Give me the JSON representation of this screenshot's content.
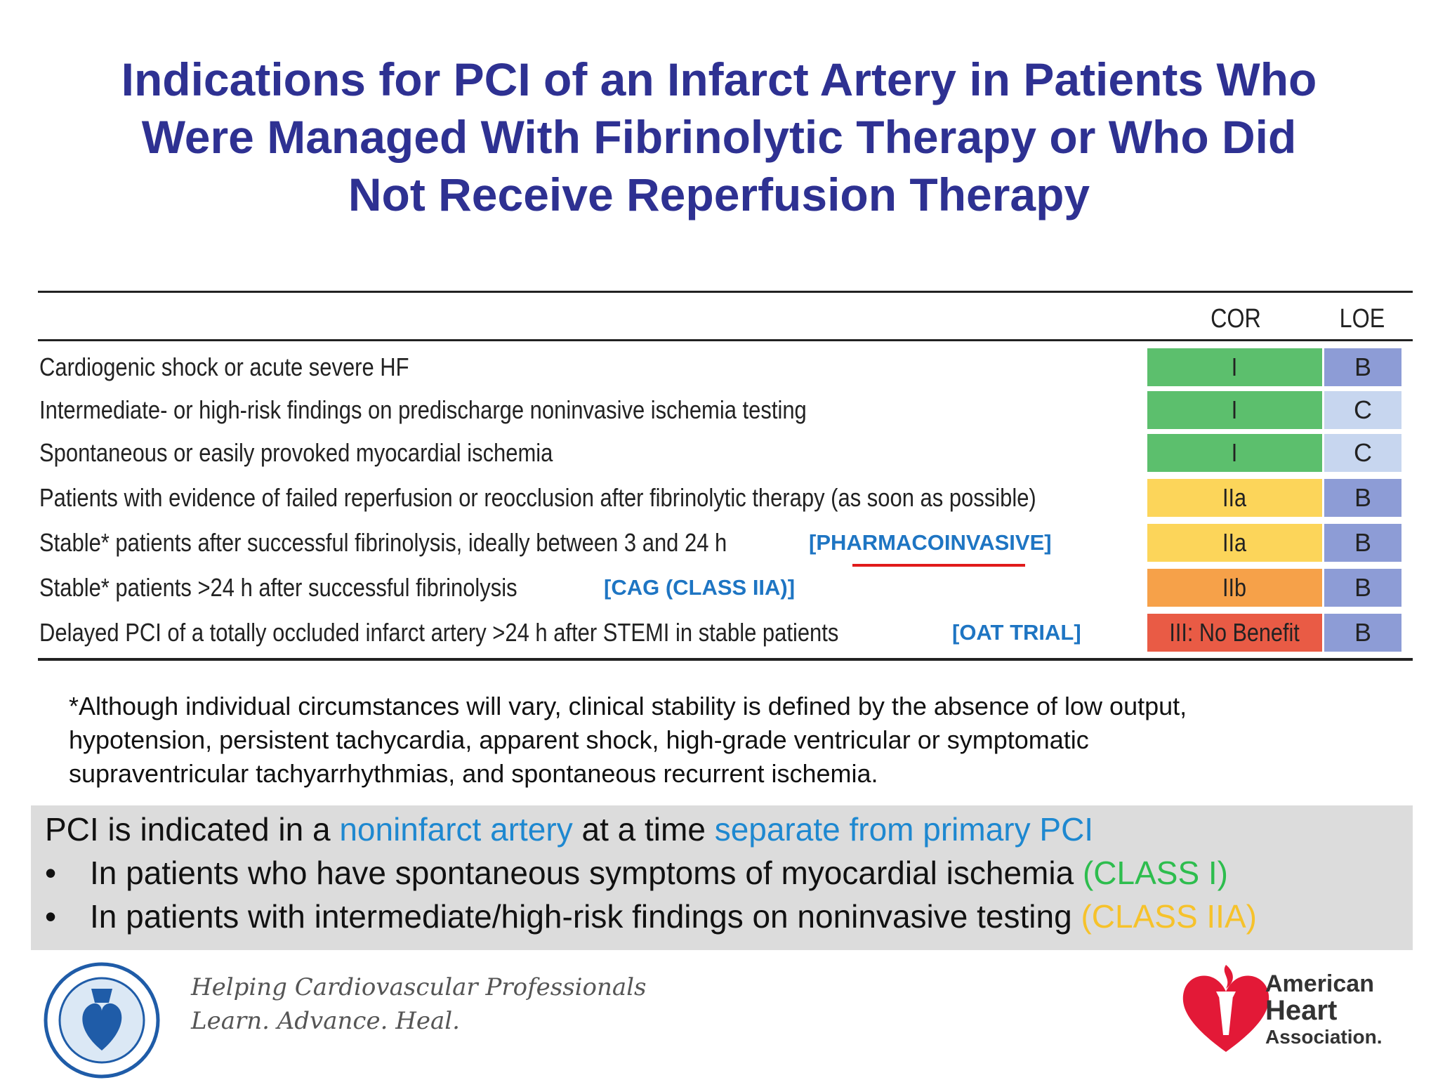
{
  "title": {
    "line1": "Indications for PCI of an Infarct Artery in Patients Who",
    "line2": "Were Managed With Fibrinolytic Therapy or Who Did",
    "line3": "Not Receive Reperfusion Therapy"
  },
  "table": {
    "col_cor": "COR",
    "col_loe": "LOE",
    "rows": [
      {
        "text": "Cardiogenic shock or acute severe HF",
        "note": "",
        "cor": "I",
        "loe": "B",
        "cor_color": "#5cbf6d",
        "loe_color": "#8d9cd6"
      },
      {
        "text": "Intermediate- or high-risk findings on predischarge noninvasive ischemia testing",
        "note": "",
        "cor": "I",
        "loe": "C",
        "cor_color": "#5cbf6d",
        "loe_color": "#c7d6ef"
      },
      {
        "text": "Spontaneous or easily provoked myocardial ischemia",
        "note": "",
        "cor": "I",
        "loe": "C",
        "cor_color": "#5cbf6d",
        "loe_color": "#c7d6ef"
      },
      {
        "text": "Patients with evidence of failed reperfusion or reocclusion after fibrinolytic therapy (as soon as possible)",
        "note": "",
        "cor": "IIa",
        "loe": "B",
        "cor_color": "#fcd55a",
        "loe_color": "#8d9cd6"
      },
      {
        "text": "Stable* patients after successful fibrinolysis, ideally between 3 and 24 h",
        "note": "[PHARMACOINVASIVE]",
        "cor": "IIa",
        "loe": "B",
        "cor_color": "#fcd55a",
        "loe_color": "#8d9cd6"
      },
      {
        "text": "Stable* patients >24 h after successful fibrinolysis",
        "note": "[CAG (CLASS IIA)]",
        "cor": "IIb",
        "loe": "B",
        "cor_color": "#f6a149",
        "loe_color": "#8d9cd6"
      },
      {
        "text": "Delayed PCI of a totally occluded infarct artery >24 h after STEMI in stable patients",
        "note": "[OAT TRIAL]",
        "cor": "III: No Benefit",
        "loe": "B",
        "cor_color": "#e95b45",
        "loe_color": "#8d9cd6"
      }
    ]
  },
  "footnote": {
    "line1": "*Although individual circumstances will vary, clinical stability is defined by the absence of low output,",
    "line2": "hypotension, persistent tachycardia, apparent shock, high-grade ventricular or symptomatic",
    "line3": "supraventricular tachyarrhythmias, and spontaneous recurrent ischemia."
  },
  "box": {
    "l1_a": "PCI is indicated in a ",
    "l1_b": "noninfarct artery",
    "l1_c": " at a time ",
    "l1_d": "separate from primary PCI",
    "bullet": "•",
    "l2_a": "In patients who have spontaneous symptoms of myocardial ischemia ",
    "l2_b": "(CLASS I)",
    "l3_a": "In patients with intermediate/high-risk findings on noninvasive testing ",
    "l3_b": "(CLASS IIA)"
  },
  "footer": {
    "acc_icon": "acc-seal-icon",
    "tagline1": "Helping Cardiovascular Professionals",
    "tagline2": "Learn. Advance. Heal.",
    "aha_icon": "aha-heart-torch-icon",
    "aha1": "American",
    "aha2": "Heart",
    "aha3": "Association."
  },
  "colors": {
    "title": "#2e3192",
    "note": "#1e75c3",
    "underline": "#e01b1b"
  }
}
